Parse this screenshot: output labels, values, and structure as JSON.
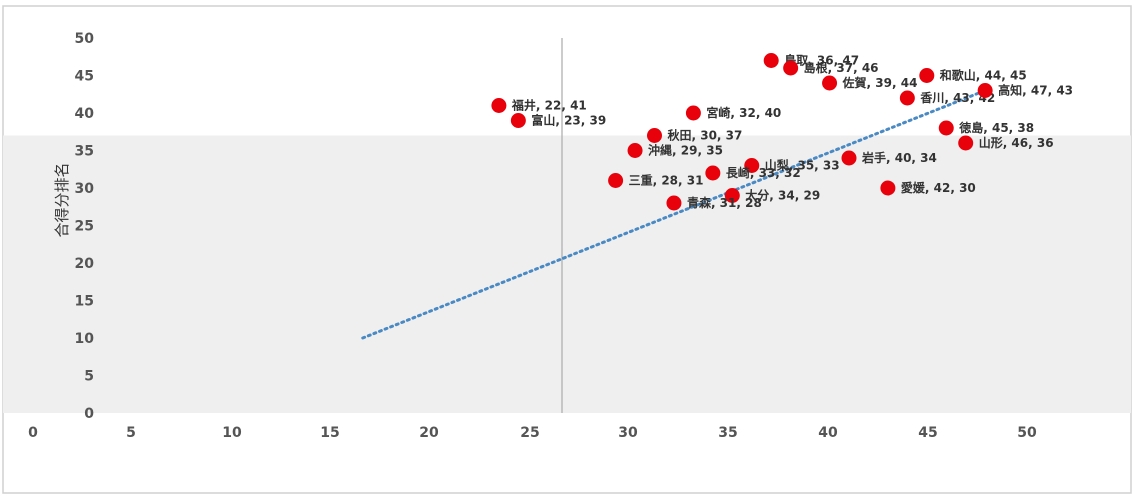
{
  "chart_data": {
    "type": "scatter",
    "title": "",
    "xlabel": "",
    "ylabel": "合得分排名",
    "xlim": [
      0,
      50
    ],
    "ylim": [
      0,
      50
    ],
    "y_ticks": [
      0,
      5,
      10,
      15,
      20,
      25,
      30,
      35,
      40,
      45,
      50
    ],
    "x_ticks": [
      0,
      5,
      10,
      15,
      20,
      25,
      30,
      35,
      40,
      45,
      50
    ],
    "reference_line_x": 25,
    "reference_band_y": [
      0,
      37
    ],
    "trendline": {
      "style": "dotted",
      "color": "#4a8ac4",
      "from": [
        15,
        10
      ],
      "to": [
        47,
        43
      ]
    },
    "series": [
      {
        "color": "#e8000b",
        "points": [
          {
            "label": "鳥取",
            "x": 36,
            "y": 47
          },
          {
            "label": "島根",
            "x": 37,
            "y": 46
          },
          {
            "label": "佐賀",
            "x": 39,
            "y": 44
          },
          {
            "label": "和歌山",
            "x": 44,
            "y": 45
          },
          {
            "label": "香川",
            "x": 43,
            "y": 42
          },
          {
            "label": "高知",
            "x": 47,
            "y": 43
          },
          {
            "label": "福井",
            "x": 22,
            "y": 41
          },
          {
            "label": "富山",
            "x": 23,
            "y": 39
          },
          {
            "label": "宮崎",
            "x": 32,
            "y": 40
          },
          {
            "label": "秋田",
            "x": 30,
            "y": 37
          },
          {
            "label": "徳島",
            "x": 45,
            "y": 38
          },
          {
            "label": "山形",
            "x": 46,
            "y": 36
          },
          {
            "label": "沖縄",
            "x": 29,
            "y": 35
          },
          {
            "label": "山梨",
            "x": 35,
            "y": 33
          },
          {
            "label": "長崎",
            "x": 33,
            "y": 32
          },
          {
            "label": "岩手",
            "x": 40,
            "y": 34
          },
          {
            "label": "三重",
            "x": 28,
            "y": 31
          },
          {
            "label": "大分",
            "x": 34,
            "y": 29
          },
          {
            "label": "愛媛",
            "x": 42,
            "y": 30
          },
          {
            "label": "青森",
            "x": 31,
            "y": 28
          }
        ]
      }
    ]
  }
}
